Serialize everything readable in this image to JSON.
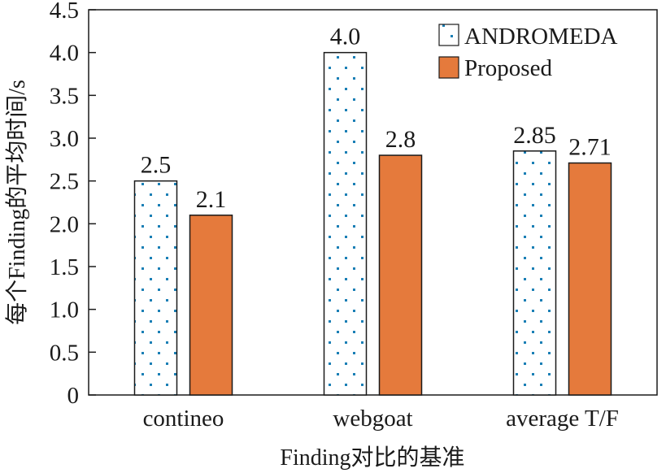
{
  "chart_data": {
    "type": "bar",
    "categories": [
      "contineo",
      "webgoat",
      "average T/F"
    ],
    "series": [
      {
        "name": "ANDROMEDA",
        "values": [
          2.5,
          4.0,
          2.85
        ],
        "labels": [
          "2.5",
          "4.0",
          "2.85"
        ],
        "color": "#ffffff",
        "pattern": "dotted",
        "dot_color": "#1a7fb5"
      },
      {
        "name": "Proposed",
        "values": [
          2.1,
          2.8,
          2.71
        ],
        "labels": [
          "2.1",
          "2.8",
          "2.71"
        ],
        "color": "#e57a3c"
      }
    ],
    "xlabel": "Finding对比的基准",
    "ylabel": "每个Finding的平均时间/s",
    "ylim": [
      0,
      4.5
    ],
    "yticks": [
      "0",
      "0.5",
      "1.0",
      "1.5",
      "2.0",
      "2.5",
      "3.0",
      "3.5",
      "4.0",
      "4.5"
    ],
    "legend_position": "top-right",
    "grid": false
  }
}
